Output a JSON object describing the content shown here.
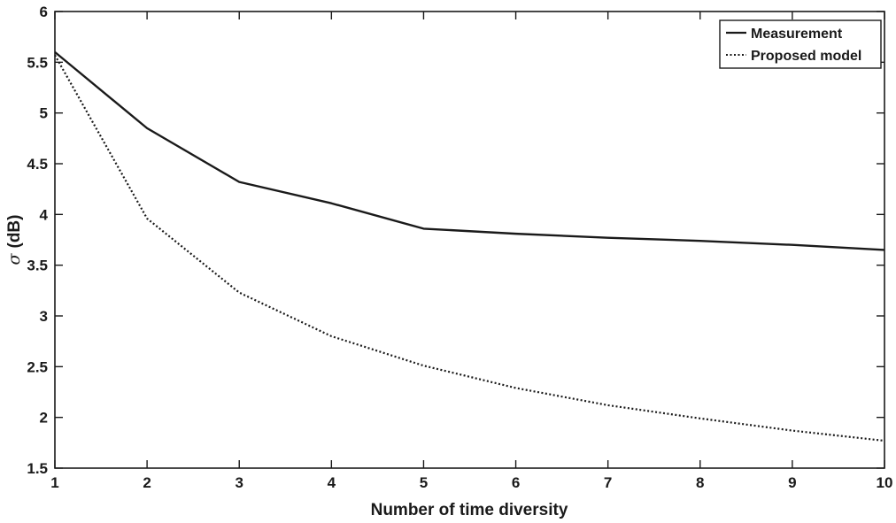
{
  "chart_data": {
    "type": "line",
    "title": "",
    "xlabel": "Number of time diversity",
    "ylabel": "σ (dB)",
    "ylabel_symbol": "σ",
    "ylabel_unit": "(dB)",
    "xlim": [
      1,
      10
    ],
    "ylim": [
      1.5,
      6
    ],
    "xticks": [
      1,
      2,
      3,
      4,
      5,
      6,
      7,
      8,
      9,
      10
    ],
    "yticks": [
      1.5,
      2,
      2.5,
      3,
      3.5,
      4,
      4.5,
      5,
      5.5,
      6
    ],
    "ytick_labels": [
      "1.5",
      "2",
      "2.5",
      "3",
      "3.5",
      "4",
      "4.5",
      "5",
      "5.5",
      "6"
    ],
    "grid": false,
    "legend_position": "top-right",
    "x": [
      1,
      2,
      3,
      4,
      5,
      6,
      7,
      8,
      9,
      10
    ],
    "series": [
      {
        "name": "Measurement",
        "style": "solid",
        "color": "#1a1a1a",
        "values": [
          5.6,
          4.85,
          4.32,
          4.11,
          3.86,
          3.81,
          3.77,
          3.74,
          3.7,
          3.65
        ]
      },
      {
        "name": "Proposed model",
        "style": "dotted",
        "color": "#1a1a1a",
        "values": [
          5.57,
          3.96,
          3.23,
          2.8,
          2.51,
          2.29,
          2.12,
          1.99,
          1.87,
          1.77
        ]
      }
    ]
  }
}
